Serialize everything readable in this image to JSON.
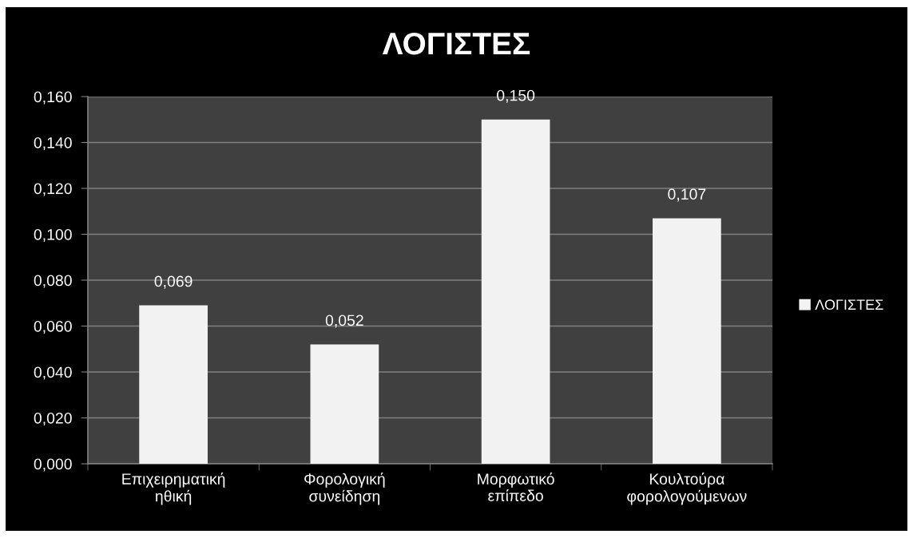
{
  "chart_data": {
    "type": "bar",
    "title": "ΛΟΓΙΣΤΕΣ",
    "categories": [
      "Επιχειρηματική\nηθική",
      "Φορολογική\nσυνείδηση",
      "Μορφωτικό\nεπίπεδο",
      "Κουλτούρα\nφορολογούμενων"
    ],
    "series": [
      {
        "name": "ΛΟΓΙΣΤΕΣ",
        "color": "#f2f2f2",
        "values": [
          0.069,
          0.052,
          0.15,
          0.107
        ],
        "value_labels": [
          "0,069",
          "0,052",
          "0,150",
          "0,107"
        ]
      }
    ],
    "ylim": [
      0,
      0.16
    ],
    "yticks": [
      {
        "value": 0,
        "label": "0,000"
      },
      {
        "value": 0.02,
        "label": "0,020"
      },
      {
        "value": 0.04,
        "label": "0,040"
      },
      {
        "value": 0.06,
        "label": "0,060"
      },
      {
        "value": 0.08,
        "label": "0,080"
      },
      {
        "value": 0.1,
        "label": "0,100"
      },
      {
        "value": 0.12,
        "label": "0,120"
      },
      {
        "value": 0.14,
        "label": "0,140"
      },
      {
        "value": 0.16,
        "label": "0,160"
      }
    ],
    "grid": "y",
    "legend": "right"
  }
}
